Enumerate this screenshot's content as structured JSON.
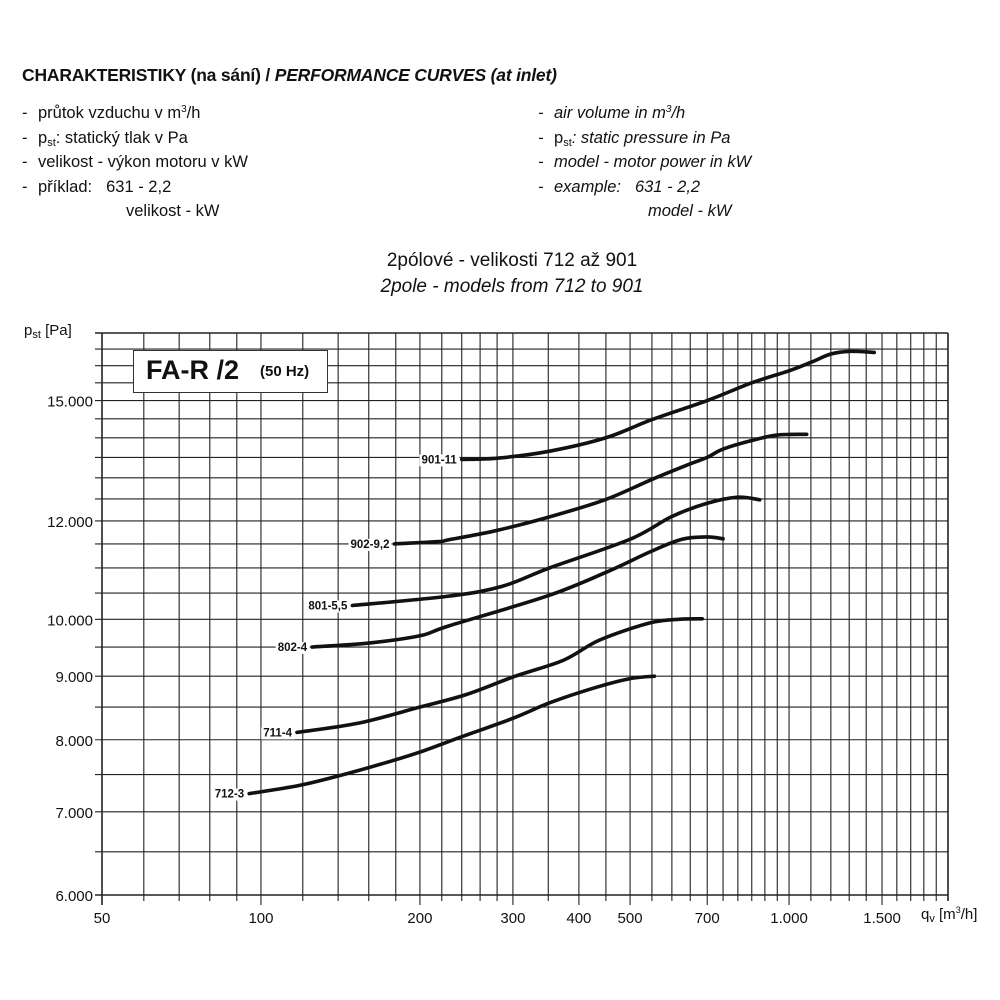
{
  "header": {
    "title_cz": "CHARAKTERISTIKY (na sání) / ",
    "title_en": "PERFORMANCE CURVES (at inlet)",
    "left": {
      "airflow": {
        "pre": "průtok vzduchu v m",
        "sup": "3",
        "post": "/h"
      },
      "pressure": {
        "pre": "p",
        "sub": "st",
        "post": ": statický tlak v Pa"
      },
      "size": "velikost - výkon motoru v kW",
      "example_label": "příklad:",
      "example_value": "631 - 2,2",
      "example_legend": "velikost - kW"
    },
    "right": {
      "airflow": {
        "pre": "air volume in m",
        "sup": "3",
        "post": "/h"
      },
      "pressure": {
        "pre": "p",
        "sub": "st",
        "post": ": static pressure in Pa"
      },
      "size": "model - motor power in kW",
      "example_label": "example:",
      "example_value": "631 - 2,2",
      "example_legend": "model - kW"
    },
    "dash": "-",
    "subtitle_cz": "2pólové - velikosti 712 až 901",
    "subtitle_en": "2pole - models from 712 to 901"
  },
  "chart_data": {
    "type": "line",
    "title": "FA-R /2",
    "title_note": "(50 Hz)",
    "xlabel": {
      "pre": "q",
      "sub": "v",
      "unit_pre": " [m",
      "sup": "3",
      "unit_post": "/h]"
    },
    "ylabel": {
      "pre": "p",
      "sub": "st",
      "unit": " [Pa]"
    },
    "xscale": "log",
    "yscale": "log",
    "xlim": [
      50,
      2000
    ],
    "ylim": [
      6000,
      17000
    ],
    "grid": true,
    "x_ticks": [
      {
        "value": 50,
        "label": "50"
      },
      {
        "value": 100,
        "label": "100"
      },
      {
        "value": 200,
        "label": "200"
      },
      {
        "value": 300,
        "label": "300"
      },
      {
        "value": 400,
        "label": "400"
      },
      {
        "value": 500,
        "label": "500"
      },
      {
        "value": 700,
        "label": "700"
      },
      {
        "value": 1000,
        "label": "1.000"
      },
      {
        "value": 1500,
        "label": "1.500"
      }
    ],
    "y_ticks": [
      {
        "value": 6000,
        "label": "6.000"
      },
      {
        "value": 7000,
        "label": "7.000"
      },
      {
        "value": 8000,
        "label": "8.000"
      },
      {
        "value": 9000,
        "label": "9.000"
      },
      {
        "value": 10000,
        "label": "10.000"
      },
      {
        "value": 12000,
        "label": "12.000"
      },
      {
        "value": 15000,
        "label": "15.000"
      }
    ],
    "series": [
      {
        "name": "901-11",
        "x": [
          240,
          280,
          350,
          450,
          550,
          700,
          850,
          1000,
          1100,
          1200,
          1300,
          1450
        ],
        "y": [
          13450,
          13480,
          13650,
          14000,
          14480,
          15000,
          15500,
          15850,
          16100,
          16350,
          16430,
          16400
        ]
      },
      {
        "name": "902-9,2",
        "x": [
          179,
          217,
          227,
          277,
          348,
          448,
          550,
          650,
          700,
          750,
          850,
          950,
          1080
        ],
        "y": [
          11500,
          11550,
          11590,
          11780,
          12075,
          12480,
          12960,
          13340,
          13500,
          13710,
          13930,
          14070,
          14090
        ]
      },
      {
        "name": "801-5,5",
        "x": [
          149,
          227,
          286,
          352,
          500,
          600,
          700,
          800,
          880
        ],
        "y": [
          10260,
          10440,
          10630,
          11000,
          11600,
          12100,
          12400,
          12540,
          12480
        ]
      },
      {
        "name": "802-4",
        "x": [
          125,
          160,
          200,
          227,
          348,
          448,
          550,
          627,
          700,
          750
        ],
        "y": [
          9500,
          9570,
          9700,
          9880,
          10440,
          10900,
          11350,
          11600,
          11650,
          11610
        ]
      },
      {
        "name": "711-4",
        "x": [
          117,
          153,
          200,
          245,
          303,
          374,
          437,
          543,
          618,
          685
        ],
        "y": [
          8110,
          8250,
          8500,
          8700,
          9000,
          9270,
          9620,
          9930,
          10000,
          10010
        ]
      },
      {
        "name": "712-3",
        "x": [
          95,
          118,
          140,
          171,
          200,
          239,
          299,
          353,
          429,
          500,
          556
        ],
        "y": [
          7240,
          7350,
          7480,
          7660,
          7820,
          8040,
          8320,
          8570,
          8810,
          8960,
          9000
        ]
      }
    ]
  }
}
